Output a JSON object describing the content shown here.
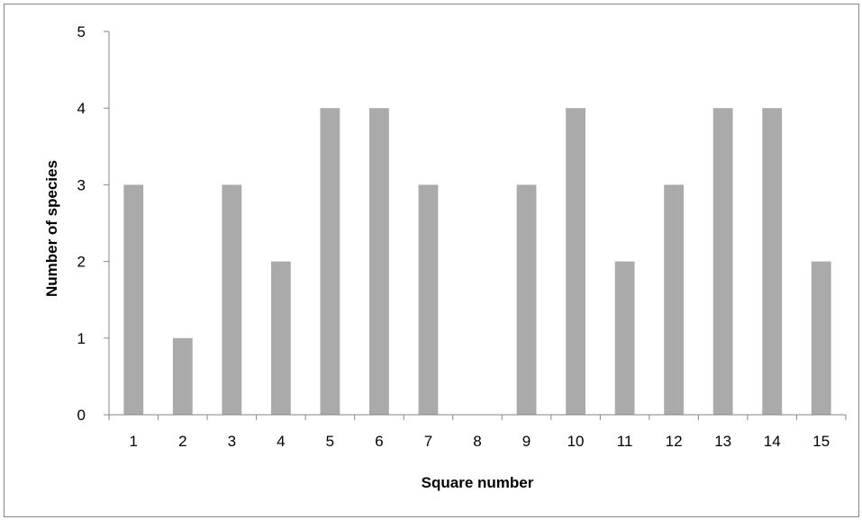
{
  "chart_data": {
    "type": "bar",
    "title": "",
    "xlabel": "Square number",
    "ylabel": "Number of species",
    "categories": [
      "1",
      "2",
      "3",
      "4",
      "5",
      "6",
      "7",
      "8",
      "9",
      "10",
      "11",
      "12",
      "13",
      "14",
      "15"
    ],
    "values": [
      3,
      1,
      3,
      2,
      4,
      4,
      3,
      0,
      3,
      4,
      2,
      3,
      4,
      4,
      2
    ],
    "ylim": [
      0,
      5
    ],
    "yticks": [
      0,
      1,
      2,
      3,
      4,
      5
    ],
    "grid": false,
    "legend": "none",
    "bar_color": "#aaaaaa",
    "axis_color": "#868686"
  }
}
